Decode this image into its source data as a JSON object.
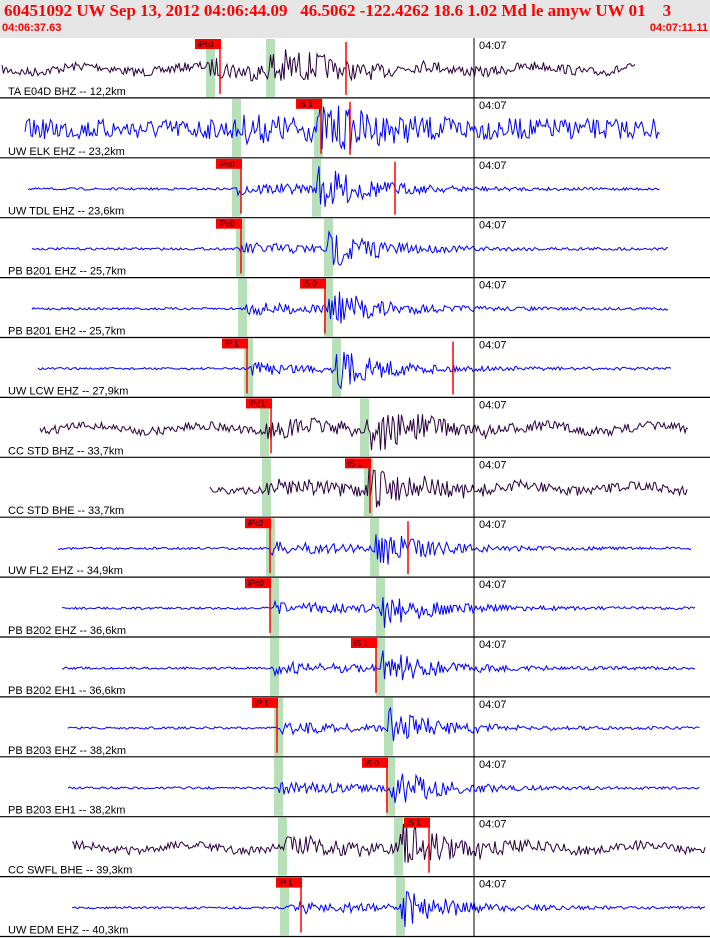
{
  "header": {
    "title": "60451092 UW Sep 13, 2012 04:06:44.09   46.5062 -122.4262 18.6 1.02 Md le amyw UW 01    3",
    "start_time": "04:06:37.63",
    "end_time": "04:07:11.11"
  },
  "colors": {
    "trace_blue": "#0000ff",
    "trace_dark": "#2b0040",
    "pick_red": "#ff0000",
    "window_green": "#b8e0b8"
  },
  "traces": [
    {
      "label": "TA E04D BHZ -- 12,2km",
      "minute_mark": "04:07",
      "phase_p": "iPc0",
      "phase_s": "",
      "color": "dark",
      "amp": "low"
    },
    {
      "label": "UW ELK EHZ -- 23,2km",
      "minute_mark": "04:07",
      "phase_p": "",
      "phase_s": "iS 1",
      "color": "blue",
      "amp": "noisy"
    },
    {
      "label": "UW TDL EHZ -- 23,6km",
      "minute_mark": "04:07",
      "phase_p": "iPc0",
      "phase_s": "",
      "color": "blue",
      "amp": "high"
    },
    {
      "label": "PB B201 EHZ -- 25,7km",
      "minute_mark": "04:07",
      "phase_p": "iPc0",
      "phase_s": "",
      "color": "blue",
      "amp": "med"
    },
    {
      "label": "PB B201 EH2 -- 25,7km",
      "minute_mark": "04:07",
      "phase_p": "",
      "phase_s": "iS 0",
      "color": "blue",
      "amp": "med"
    },
    {
      "label": "UW LCW EHZ -- 27,9km",
      "minute_mark": "04:07",
      "phase_p": "iP 1",
      "phase_s": "",
      "color": "blue",
      "amp": "med"
    },
    {
      "label": "CC STD BHZ -- 33,7km",
      "minute_mark": "04:07",
      "phase_p": "iPd1",
      "phase_s": "",
      "color": "dark",
      "amp": "high"
    },
    {
      "label": "CC STD BHE -- 33,7km",
      "minute_mark": "04:07",
      "phase_p": "",
      "phase_s": "iS 1",
      "color": "dark",
      "amp": "med"
    },
    {
      "label": "UW FL2 EHZ -- 34,9km",
      "minute_mark": "04:07",
      "phase_p": "iPc2",
      "phase_s": "",
      "color": "blue",
      "amp": "med"
    },
    {
      "label": "PB B202 EHZ -- 36,6km",
      "minute_mark": "04:07",
      "phase_p": "iPc0",
      "phase_s": "",
      "color": "blue",
      "amp": "med"
    },
    {
      "label": "PB B202 EH1 -- 36,6km",
      "minute_mark": "04:07",
      "phase_p": "",
      "phase_s": "iS 1",
      "color": "blue",
      "amp": "med"
    },
    {
      "label": "PB B203 EHZ -- 38,2km",
      "minute_mark": "04:07",
      "phase_p": "iP 1",
      "phase_s": "",
      "color": "blue",
      "amp": "med"
    },
    {
      "label": "PB B203 EH1 -- 38,2km",
      "minute_mark": "04:07",
      "phase_p": "",
      "phase_s": "iS 0",
      "color": "blue",
      "amp": "med"
    },
    {
      "label": "CC SWFL BHE -- 39,3km",
      "minute_mark": "04:07",
      "phase_p": "",
      "phase_s": "iS 1",
      "color": "dark",
      "amp": "high"
    },
    {
      "label": "UW EDM EHZ -- 40,3km",
      "minute_mark": "04:07",
      "phase_p": "iP 1",
      "phase_s": "",
      "color": "blue",
      "amp": "med"
    }
  ]
}
